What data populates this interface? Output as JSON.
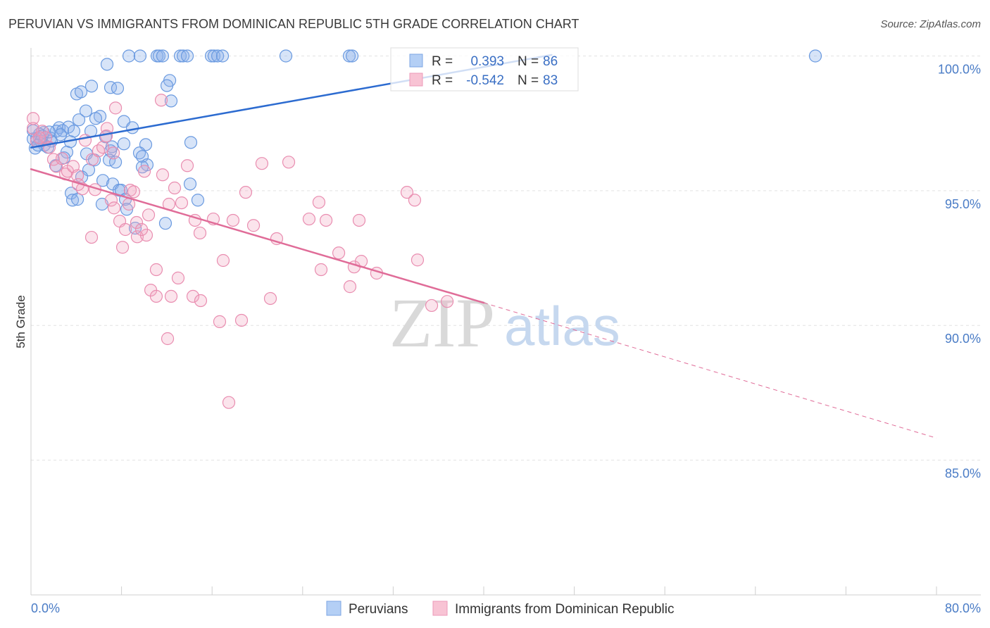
{
  "header": {
    "source": "Source: ZipAtlas.com"
  },
  "watermark": {
    "zip": "ZIP",
    "atlas": "atlas"
  },
  "legend": {
    "r_label": "R =",
    "n_label": "N ="
  },
  "colors": {
    "tick_text": "#4a7cc6",
    "legend_value": "#3a6fc4",
    "grid": "#e2e2e2",
    "axis": "#cfcfcf"
  },
  "chart_data": {
    "type": "scatter",
    "title": "PERUVIAN VS IMMIGRANTS FROM DOMINICAN REPUBLIC 5TH GRADE CORRELATION CHART",
    "xlabel": "",
    "ylabel": "5th Grade",
    "xlim": [
      0,
      80
    ],
    "ylim": [
      80,
      100.3
    ],
    "x_ticks": [
      {
        "value": 0,
        "label": "0.0%"
      },
      {
        "value": 80,
        "label": "80.0%"
      }
    ],
    "x_tick_marks": [
      8,
      16,
      24,
      32,
      40,
      48,
      56,
      64,
      72,
      80
    ],
    "y_ticks": [
      {
        "value": 100,
        "label": "100.0%"
      },
      {
        "value": 95,
        "label": "95.0%"
      },
      {
        "value": 90,
        "label": "90.0%"
      },
      {
        "value": 85,
        "label": "85.0%"
      }
    ],
    "grid": true,
    "series": [
      {
        "name": "Peruvians",
        "r": "0.393",
        "n": "86",
        "color": "#6a9ae0",
        "fill": "#8db3ec",
        "line_color": "#2c6bd0",
        "swatch_fill": "#b4cff5",
        "swatch_stroke": "#7da6e3",
        "trend": {
          "x": [
            0,
            46
          ],
          "y": [
            96.6,
            100.04
          ]
        },
        "points": [
          [
            8.65,
            100
          ],
          [
            9.64,
            100
          ],
          [
            11.14,
            100
          ],
          [
            11.32,
            100
          ],
          [
            11.63,
            100
          ],
          [
            13.19,
            100
          ],
          [
            13.44,
            100
          ],
          [
            13.81,
            100
          ],
          [
            15.93,
            100
          ],
          [
            16.17,
            100
          ],
          [
            16.49,
            100
          ],
          [
            16.92,
            100
          ],
          [
            22.52,
            100
          ],
          [
            28.12,
            100
          ],
          [
            28.37,
            100
          ],
          [
            69.3,
            100
          ],
          [
            6.72,
            99.69
          ],
          [
            12.26,
            99.09
          ],
          [
            12.01,
            98.9
          ],
          [
            5.35,
            98.88
          ],
          [
            7.03,
            98.83
          ],
          [
            7.65,
            98.8
          ],
          [
            4.04,
            98.59
          ],
          [
            4.42,
            98.67
          ],
          [
            12.38,
            98.33
          ],
          [
            4.85,
            97.96
          ],
          [
            4.23,
            97.63
          ],
          [
            6.1,
            97.76
          ],
          [
            5.72,
            97.68
          ],
          [
            8.21,
            97.57
          ],
          [
            8.96,
            97.34
          ],
          [
            2.49,
            97.34
          ],
          [
            2.24,
            97.21
          ],
          [
            2.8,
            97.23
          ],
          [
            3.3,
            97.36
          ],
          [
            3.79,
            97.21
          ],
          [
            5.29,
            97.21
          ],
          [
            1.12,
            97.16
          ],
          [
            0.75,
            97.1
          ],
          [
            0.5,
            96.95
          ],
          [
            1.74,
            96.95
          ],
          [
            6.59,
            97.0
          ],
          [
            1.8,
            96.84
          ],
          [
            3.48,
            96.82
          ],
          [
            14.12,
            96.79
          ],
          [
            8.21,
            96.74
          ],
          [
            10.14,
            96.71
          ],
          [
            7.15,
            96.63
          ],
          [
            7.03,
            96.48
          ],
          [
            1.18,
            96.69
          ],
          [
            1.49,
            96.61
          ],
          [
            0.37,
            96.58
          ],
          [
            3.17,
            96.43
          ],
          [
            4.91,
            96.37
          ],
          [
            9.58,
            96.4
          ],
          [
            9.83,
            96.27
          ],
          [
            2.92,
            96.22
          ],
          [
            6.91,
            96.14
          ],
          [
            5.6,
            96.14
          ],
          [
            7.47,
            96.06
          ],
          [
            10.26,
            95.96
          ],
          [
            9.83,
            95.88
          ],
          [
            2.18,
            95.93
          ],
          [
            5.1,
            95.77
          ],
          [
            4.48,
            95.51
          ],
          [
            6.35,
            95.38
          ],
          [
            14.06,
            95.25
          ],
          [
            7.22,
            95.25
          ],
          [
            7.78,
            95.02
          ],
          [
            7.96,
            95.02
          ],
          [
            3.55,
            94.91
          ],
          [
            3.67,
            94.65
          ],
          [
            4.11,
            94.68
          ],
          [
            8.34,
            94.68
          ],
          [
            8.46,
            94.31
          ],
          [
            14.74,
            94.65
          ],
          [
            6.28,
            94.5
          ],
          [
            11.88,
            93.79
          ],
          [
            9.21,
            93.61
          ],
          [
            0.19,
            96.92
          ],
          [
            0.19,
            97.23
          ],
          [
            1.0,
            97.03
          ],
          [
            0.87,
            96.84
          ],
          [
            2.61,
            97.08
          ],
          [
            1.62,
            97.18
          ],
          [
            0.62,
            96.69
          ]
        ]
      },
      {
        "name": "Immigrants from Dominican Republic",
        "r": "-0.542",
        "n": "83",
        "color": "#e98db0",
        "fill": "#f2a7c0",
        "line_color": "#e06c98",
        "swatch_fill": "#f8c3d4",
        "swatch_stroke": "#ec9ab8",
        "trend": {
          "x": [
            0,
            40
          ],
          "y": [
            95.8,
            90.84
          ]
        },
        "trend_extension": {
          "x": [
            40,
            80
          ],
          "y": [
            90.84,
            85.82
          ]
        },
        "points": [
          [
            0.19,
            97.68
          ],
          [
            0.19,
            97.31
          ],
          [
            1.0,
            97.21
          ],
          [
            0.5,
            96.84
          ],
          [
            1.31,
            96.97
          ],
          [
            1.62,
            96.61
          ],
          [
            1.99,
            96.16
          ],
          [
            2.24,
            95.9
          ],
          [
            2.74,
            96.19
          ],
          [
            3.05,
            95.62
          ],
          [
            3.23,
            95.72
          ],
          [
            3.73,
            95.9
          ],
          [
            4.11,
            95.56
          ],
          [
            4.54,
            95.07
          ],
          [
            4.79,
            96.87
          ],
          [
            5.41,
            96.16
          ],
          [
            5.97,
            96.48
          ],
          [
            6.35,
            96.61
          ],
          [
            6.72,
            97.31
          ],
          [
            6.66,
            97.03
          ],
          [
            7.28,
            96.4
          ],
          [
            7.47,
            98.07
          ],
          [
            7.09,
            94.65
          ],
          [
            7.34,
            94.36
          ],
          [
            7.84,
            93.87
          ],
          [
            8.09,
            92.9
          ],
          [
            8.34,
            93.56
          ],
          [
            8.77,
            95.02
          ],
          [
            9.08,
            94.96
          ],
          [
            8.65,
            94.5
          ],
          [
            9.33,
            93.82
          ],
          [
            9.39,
            93.29
          ],
          [
            10.02,
            95.72
          ],
          [
            10.2,
            93.35
          ],
          [
            10.39,
            94.1
          ],
          [
            9.77,
            93.56
          ],
          [
            11.07,
            92.07
          ],
          [
            10.58,
            91.31
          ],
          [
            11.07,
            91.08
          ],
          [
            11.51,
            98.36
          ],
          [
            11.63,
            95.59
          ],
          [
            12.07,
            89.51
          ],
          [
            12.19,
            94.5
          ],
          [
            12.38,
            91.08
          ],
          [
            12.69,
            95.1
          ],
          [
            13.0,
            91.76
          ],
          [
            13.31,
            94.55
          ],
          [
            13.81,
            95.93
          ],
          [
            14.49,
            93.9
          ],
          [
            14.93,
            93.43
          ],
          [
            14.31,
            91.08
          ],
          [
            14.99,
            90.92
          ],
          [
            16.11,
            93.95
          ],
          [
            16.67,
            90.14
          ],
          [
            16.98,
            92.41
          ],
          [
            17.85,
            93.9
          ],
          [
            17.48,
            87.14
          ],
          [
            18.6,
            90.19
          ],
          [
            18.97,
            94.94
          ],
          [
            19.66,
            93.71
          ],
          [
            20.4,
            96.01
          ],
          [
            21.15,
            91.0
          ],
          [
            21.71,
            93.22
          ],
          [
            22.77,
            96.06
          ],
          [
            24.57,
            93.95
          ],
          [
            25.44,
            94.57
          ],
          [
            25.63,
            92.07
          ],
          [
            26.07,
            93.9
          ],
          [
            27.19,
            92.69
          ],
          [
            28.18,
            91.44
          ],
          [
            28.55,
            92.17
          ],
          [
            28.99,
            93.9
          ],
          [
            29.18,
            92.38
          ],
          [
            30.54,
            91.94
          ],
          [
            33.22,
            94.94
          ],
          [
            33.9,
            94.65
          ],
          [
            34.15,
            92.43
          ],
          [
            35.4,
            90.74
          ],
          [
            36.77,
            90.89
          ],
          [
            5.35,
            93.27
          ],
          [
            4.17,
            95.23
          ],
          [
            5.66,
            95.04
          ],
          [
            0.75,
            96.97
          ]
        ]
      }
    ]
  }
}
